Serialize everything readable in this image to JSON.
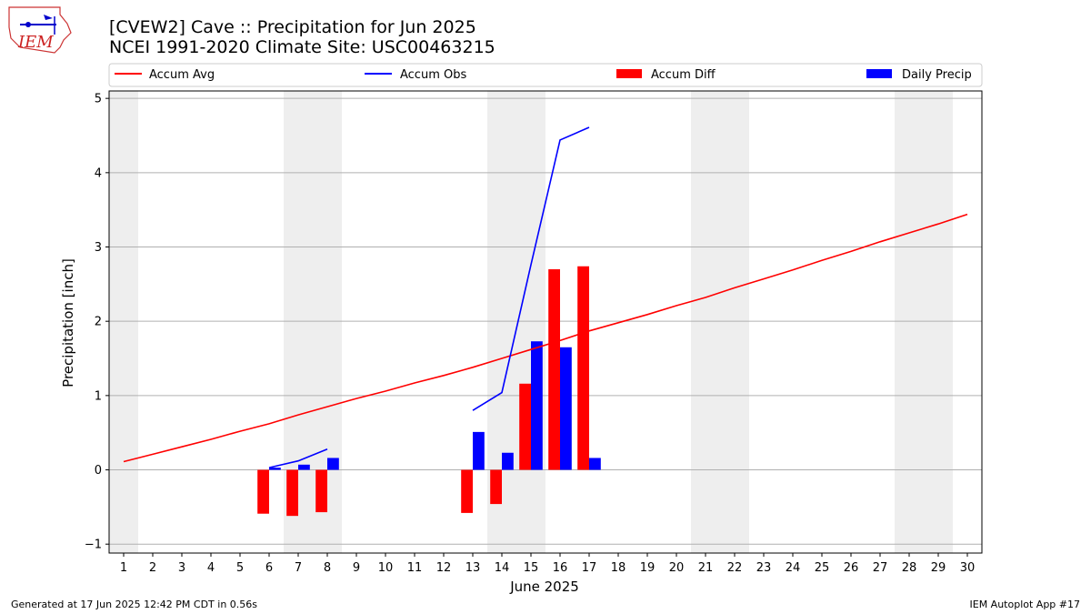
{
  "chart_data": {
    "type": "bar",
    "title_line1": "[CVEW2] Cave :: Precipitation for Jun 2025",
    "title_line2": "NCEI 1991-2020 Climate Site: USC00463215",
    "xlabel": "June 2025",
    "ylabel": "Precipitation [inch]",
    "ylim": [
      -1.12,
      5.1
    ],
    "yticks": [
      -1,
      0,
      1,
      2,
      3,
      4,
      5
    ],
    "xlim": [
      0.5,
      30.5
    ],
    "xticks": [
      1,
      2,
      3,
      4,
      5,
      6,
      7,
      8,
      9,
      10,
      11,
      12,
      13,
      14,
      15,
      16,
      17,
      18,
      19,
      20,
      21,
      22,
      23,
      24,
      25,
      26,
      27,
      28,
      29,
      30
    ],
    "weekend_bands": [
      [
        0.5,
        1.5
      ],
      [
        6.5,
        8.5
      ],
      [
        13.5,
        15.5
      ],
      [
        20.5,
        22.5
      ],
      [
        27.5,
        29.5
      ]
    ],
    "legend": [
      "Accum Avg",
      "Accum Obs",
      "Accum Diff",
      "Daily Precip"
    ],
    "colors": {
      "avg": "#ff0000",
      "obs": "#0000ff",
      "diff": "#ff0000",
      "daily": "#0000ff",
      "band": "#eeeeee",
      "grid": "#b0b0b0"
    },
    "series": [
      {
        "name": "Accum Avg",
        "kind": "line",
        "x": [
          1,
          2,
          3,
          4,
          5,
          6,
          7,
          8,
          9,
          10,
          11,
          12,
          13,
          14,
          15,
          16,
          17,
          18,
          19,
          20,
          21,
          22,
          23,
          24,
          25,
          26,
          27,
          28,
          29,
          30
        ],
        "values": [
          0.11,
          0.21,
          0.31,
          0.41,
          0.52,
          0.62,
          0.74,
          0.85,
          0.96,
          1.06,
          1.17,
          1.27,
          1.38,
          1.5,
          1.62,
          1.74,
          1.87,
          1.98,
          2.09,
          2.21,
          2.32,
          2.45,
          2.57,
          2.69,
          2.82,
          2.94,
          3.07,
          3.19,
          3.31,
          3.44
        ]
      },
      {
        "name": "Accum Obs",
        "kind": "line",
        "x": [
          6,
          7,
          8,
          null,
          13,
          14,
          15,
          16,
          17
        ],
        "values": [
          0.03,
          0.12,
          0.28,
          null,
          0.8,
          1.04,
          2.76,
          4.44,
          4.61
        ]
      },
      {
        "name": "Accum Diff",
        "kind": "bar",
        "x": [
          6,
          7,
          8,
          13,
          14,
          15,
          16,
          17
        ],
        "values": [
          -0.59,
          -0.62,
          -0.57,
          -0.58,
          -0.46,
          1.16,
          2.7,
          2.74
        ]
      },
      {
        "name": "Daily Precip",
        "kind": "bar",
        "x": [
          6,
          7,
          8,
          13,
          14,
          15,
          16,
          17
        ],
        "values": [
          0.03,
          0.07,
          0.16,
          0.51,
          0.23,
          1.73,
          1.65,
          0.16
        ]
      }
    ]
  },
  "logo_text": "IEM",
  "footer": {
    "left": "Generated at 17 Jun 2025 12:42 PM CDT in 0.56s",
    "right": "IEM Autoplot App #17"
  }
}
